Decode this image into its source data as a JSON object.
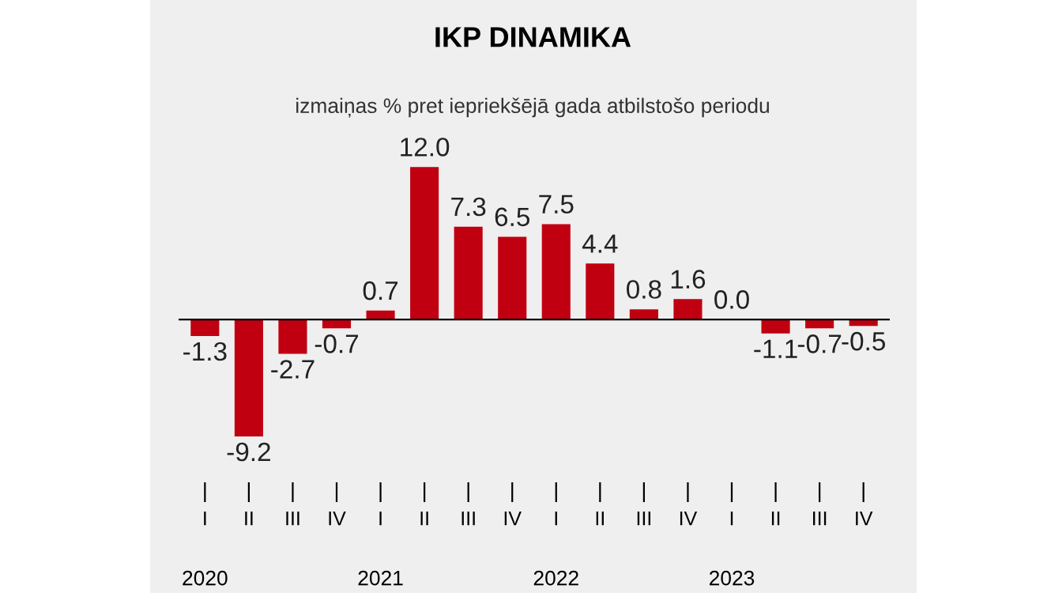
{
  "chart_data": {
    "type": "bar",
    "title": "IKP DINAMIKA",
    "subtitle": "izmaiņas % pret iepriekšējā gada atbilstošo periodu",
    "categories": [
      "I",
      "II",
      "III",
      "IV",
      "I",
      "II",
      "III",
      "IV",
      "I",
      "II",
      "III",
      "IV",
      "I",
      "II",
      "III",
      "IV"
    ],
    "values": [
      -1.3,
      -9.2,
      -2.7,
      -0.7,
      0.7,
      12.0,
      7.3,
      6.5,
      7.5,
      4.4,
      0.8,
      1.6,
      0.0,
      -1.1,
      -0.7,
      -0.5
    ],
    "value_labels": [
      "-1.3",
      "-9.2",
      "-2.7",
      "-0.7",
      "0.7",
      "12.0",
      "7.3",
      "6.5",
      "7.5",
      "4.4",
      "0.8",
      "1.6",
      "0.0",
      "-1.1",
      "-0.7",
      "-0.5"
    ],
    "color": "#c00010",
    "annotations": [
      "2020",
      "2021",
      "2022",
      "2023"
    ],
    "grid": false,
    "legend": false
  }
}
